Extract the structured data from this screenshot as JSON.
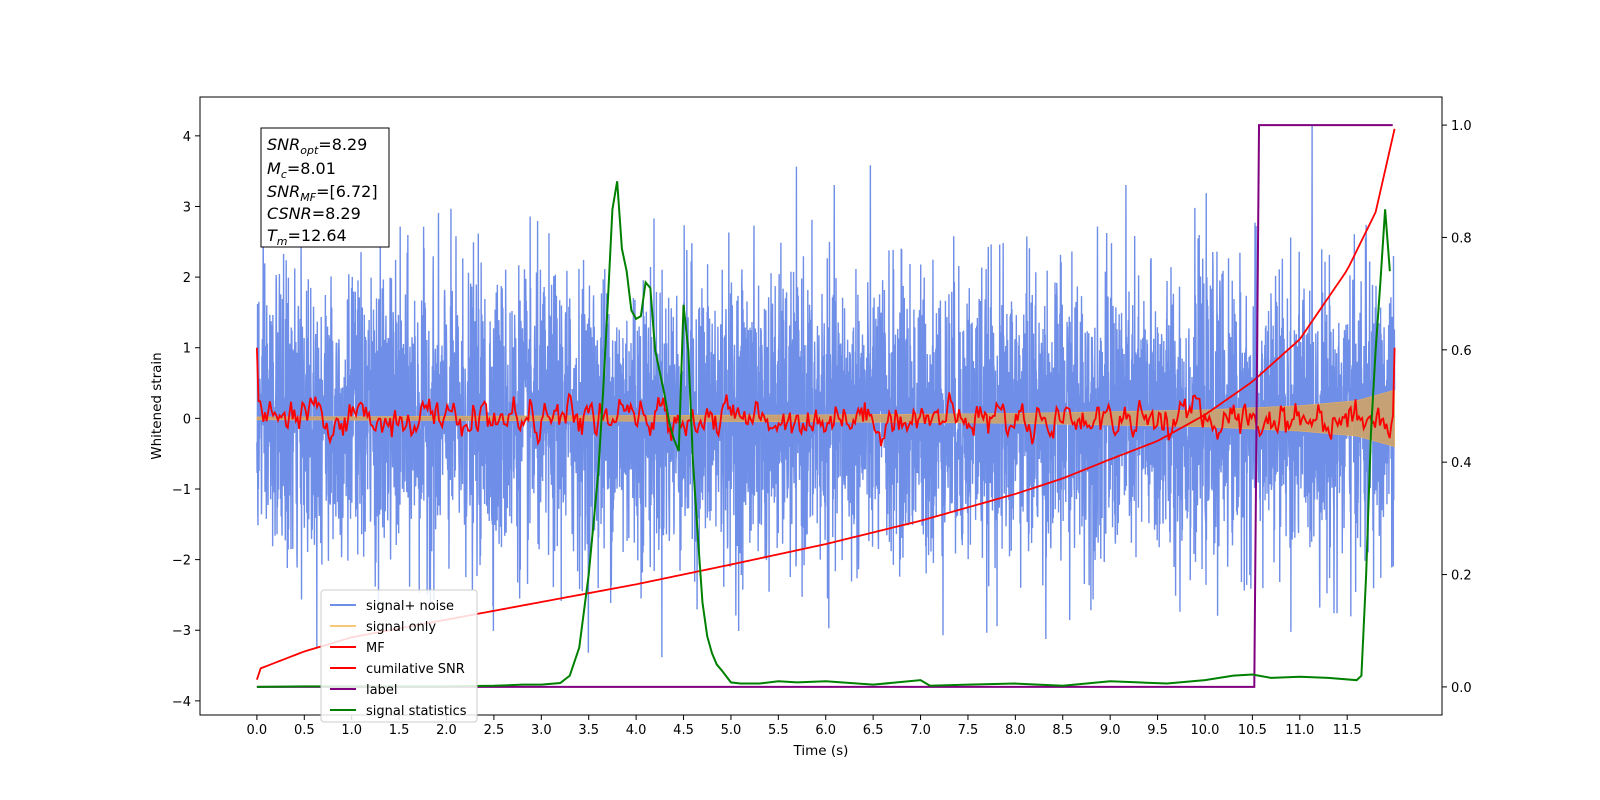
{
  "chart_data": {
    "type": "line",
    "xlabel": "Time (s)",
    "ylabel": "Whitened strain",
    "xlim": [
      -0.6,
      12.5
    ],
    "ylim": [
      -4.2,
      4.55
    ],
    "ylim_right": [
      -0.05,
      1.05
    ],
    "x_ticks": [
      "0.0",
      "0.5",
      "1.0",
      "1.5",
      "2.0",
      "2.5",
      "3.0",
      "3.5",
      "4.0",
      "4.5",
      "5.0",
      "5.5",
      "6.0",
      "6.5",
      "7.0",
      "7.5",
      "8.0",
      "8.5",
      "9.0",
      "9.5",
      "10.0",
      "10.5",
      "11.0",
      "11.5"
    ],
    "y_ticks_left": [
      "4",
      "3",
      "2",
      "1",
      "0",
      "−1",
      "−2",
      "−3",
      "−4"
    ],
    "y_ticks_right": [
      "1.0",
      "0.8",
      "0.6",
      "0.4",
      "0.2",
      "0.0"
    ],
    "info_box": {
      "snr_opt_main": "SNR",
      "snr_opt_sub": "opt",
      "snr_opt_value": "=8.29",
      "mc_main": "M",
      "mc_sub": "c",
      "mc_value": "=8.01",
      "snr_mf_main": "SNR",
      "snr_mf_sub": "MF",
      "snr_mf_value": "=[6.72]",
      "csnr_main": "CSNR",
      "csnr_value": "=8.29",
      "tm_main": "T",
      "tm_sub": "m",
      "tm_value": "=12.64"
    },
    "legend": {
      "position": "lower-left",
      "entries": [
        {
          "label": "signal+ noise",
          "color": "#6f8ee7"
        },
        {
          "label": "signal only",
          "color": "#f7c77a"
        },
        {
          "label": "MF",
          "color": "#ff0000"
        },
        {
          "label": "cumilative SNR",
          "color": "#ff0000"
        },
        {
          "label": "label",
          "color": "#800080"
        },
        {
          "label": "signal statistics",
          "color": "#008000"
        }
      ]
    },
    "series": [
      {
        "name": "signal+ noise",
        "axis": "left",
        "color": "#6f8ee7",
        "style": "noise",
        "x_range": [
          0.0,
          12.0
        ],
        "amplitude_1sigma": 1.0,
        "min": -3.75,
        "max": 4.15
      },
      {
        "name": "signal only",
        "axis": "left",
        "color": "#c9a26f",
        "style": "band",
        "x": [
          0.0,
          2.0,
          4.0,
          6.0,
          8.0,
          10.0,
          11.0,
          11.6,
          12.0
        ],
        "half_width": [
          0.02,
          0.03,
          0.04,
          0.05,
          0.07,
          0.12,
          0.18,
          0.25,
          0.4
        ]
      },
      {
        "name": "MF",
        "axis": "left",
        "color": "#ff0000",
        "style": "noise-small",
        "x_range": [
          0.0,
          12.0
        ],
        "amplitude_1sigma": 0.11,
        "start_value": 1.0,
        "end_value": 1.0
      },
      {
        "name": "cumilative SNR",
        "axis": "left",
        "color": "#ff0000",
        "x": [
          0.0,
          0.02,
          0.5,
          1.0,
          2.0,
          3.0,
          4.0,
          5.0,
          6.0,
          7.0,
          8.0,
          8.5,
          9.0,
          9.5,
          10.0,
          10.5,
          11.0,
          11.5,
          11.8,
          12.0
        ],
        "values": [
          -3.7,
          -3.55,
          -3.3,
          -3.1,
          -2.85,
          -2.6,
          -2.35,
          -2.07,
          -1.78,
          -1.45,
          -1.07,
          -0.85,
          -0.58,
          -0.32,
          0.05,
          0.52,
          1.12,
          2.1,
          2.92,
          4.1
        ]
      },
      {
        "name": "label",
        "axis": "right",
        "color": "#800080",
        "x": [
          0.0,
          10.52,
          10.57,
          11.98
        ],
        "values": [
          0.0,
          0.0,
          1.0,
          1.0
        ]
      },
      {
        "name": "signal statistics",
        "axis": "right",
        "color": "#008000",
        "x": [
          0.0,
          0.5,
          1.0,
          1.5,
          2.0,
          2.5,
          2.8,
          3.0,
          3.2,
          3.3,
          3.4,
          3.5,
          3.6,
          3.65,
          3.7,
          3.75,
          3.8,
          3.85,
          3.9,
          3.95,
          4.0,
          4.05,
          4.1,
          4.15,
          4.2,
          4.25,
          4.3,
          4.35,
          4.4,
          4.45,
          4.5,
          4.55,
          4.6,
          4.65,
          4.7,
          4.75,
          4.8,
          4.85,
          4.9,
          5.0,
          5.1,
          5.3,
          5.5,
          5.7,
          6.0,
          6.5,
          7.0,
          7.1,
          7.5,
          8.0,
          8.5,
          9.0,
          9.3,
          9.6,
          10.0,
          10.3,
          10.5,
          10.7,
          11.0,
          11.3,
          11.6,
          11.65,
          11.7,
          11.75,
          11.8,
          11.85,
          11.9,
          11.95
        ],
        "values": [
          0.0,
          0.001,
          0.001,
          0.001,
          0.001,
          0.002,
          0.004,
          0.004,
          0.007,
          0.02,
          0.07,
          0.2,
          0.38,
          0.52,
          0.68,
          0.85,
          0.9,
          0.78,
          0.74,
          0.67,
          0.655,
          0.66,
          0.72,
          0.71,
          0.6,
          0.56,
          0.52,
          0.47,
          0.44,
          0.42,
          0.68,
          0.6,
          0.4,
          0.27,
          0.15,
          0.09,
          0.06,
          0.04,
          0.03,
          0.008,
          0.006,
          0.006,
          0.01,
          0.008,
          0.01,
          0.004,
          0.012,
          0.002,
          0.004,
          0.006,
          0.002,
          0.01,
          0.008,
          0.006,
          0.012,
          0.02,
          0.022,
          0.016,
          0.018,
          0.016,
          0.012,
          0.02,
          0.2,
          0.45,
          0.6,
          0.72,
          0.85,
          0.74
        ]
      }
    ]
  }
}
